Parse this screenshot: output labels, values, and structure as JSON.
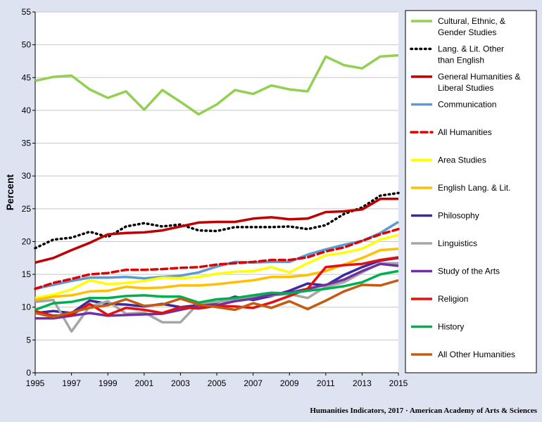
{
  "chart_data": {
    "type": "line",
    "ylabel": "Percent",
    "xlabel": "",
    "ylim": [
      0,
      55
    ],
    "yticks": [
      0,
      5,
      10,
      15,
      20,
      25,
      30,
      35,
      40,
      45,
      50,
      55
    ],
    "xlim": [
      1995,
      2015
    ],
    "xticks": [
      1995,
      1997,
      1999,
      2001,
      2003,
      2005,
      2007,
      2009,
      2011,
      2013,
      2015
    ],
    "x": [
      1995,
      1996,
      1997,
      1998,
      1999,
      2000,
      2001,
      2002,
      2003,
      2004,
      2005,
      2006,
      2007,
      2008,
      2009,
      2010,
      2011,
      2012,
      2013,
      2014,
      2015
    ],
    "legend_position": "right",
    "grid": "horizontal",
    "series": [
      {
        "name": "Cultural, Ethnic, & Gender Studies",
        "legend_lines": [
          "Cultural, Ethnic, &",
          "Gender Studies"
        ],
        "color": "#92d050",
        "dash": "solid",
        "values": [
          44.5,
          45.1,
          45.3,
          43.2,
          41.9,
          42.9,
          40.1,
          43.1,
          41.3,
          39.4,
          40.9,
          43.1,
          42.5,
          43.8,
          43.2,
          42.9,
          48.2,
          46.9,
          46.4,
          48.2,
          48.4
        ]
      },
      {
        "name": "Lang. & Lit. Other than English",
        "legend_lines": [
          "Lang. & Lit. Other",
          "than English"
        ],
        "color": "#000000",
        "dash": "dotted",
        "values": [
          19.0,
          20.3,
          20.6,
          21.5,
          20.7,
          22.3,
          22.8,
          22.3,
          22.6,
          21.7,
          21.6,
          22.2,
          22.2,
          22.2,
          22.3,
          21.9,
          22.5,
          24.2,
          25.2,
          27.0,
          27.4
        ]
      },
      {
        "name": "General Humanities & Liberal Studies",
        "legend_lines": [
          "General Humanities &",
          "Liberal Studies"
        ],
        "color": "#c00000",
        "dash": "solid",
        "values": [
          16.8,
          17.5,
          18.7,
          19.8,
          21.1,
          21.3,
          21.4,
          21.7,
          22.3,
          22.9,
          23.0,
          23.0,
          23.5,
          23.7,
          23.4,
          23.5,
          24.5,
          24.6,
          24.9,
          26.5,
          26.5
        ]
      },
      {
        "name": "Communication",
        "legend_lines": [
          "Communication"
        ],
        "color": "#5b9bd5",
        "dash": "solid",
        "values": [
          12.8,
          13.4,
          14.0,
          14.5,
          14.5,
          14.6,
          14.4,
          14.6,
          14.8,
          15.3,
          16.2,
          16.9,
          16.8,
          16.9,
          16.9,
          18.0,
          18.8,
          19.5,
          20.1,
          21.3,
          23.0
        ]
      },
      {
        "name": "All Humanities",
        "legend_lines": [
          "All Humanities"
        ],
        "color": "#e00000",
        "dash": "dashed",
        "values": [
          12.8,
          13.7,
          14.3,
          15.0,
          15.2,
          15.7,
          15.7,
          15.8,
          16.0,
          16.1,
          16.5,
          16.7,
          16.9,
          17.2,
          17.2,
          17.6,
          18.5,
          19.1,
          20.1,
          21.1,
          21.9
        ]
      },
      {
        "name": "Area Studies",
        "legend_lines": [
          "Area Studies"
        ],
        "color": "#ffff00",
        "dash": "solid",
        "values": [
          11.4,
          11.9,
          12.7,
          14.1,
          13.5,
          13.7,
          14.0,
          14.5,
          14.4,
          14.6,
          15.1,
          15.4,
          15.5,
          16.1,
          15.3,
          16.7,
          17.9,
          18.3,
          18.9,
          20.3,
          21.0
        ]
      },
      {
        "name": "English Lang. & Lit.",
        "legend_lines": [
          "English Lang. & Lit."
        ],
        "color": "#ffc000",
        "dash": "solid",
        "values": [
          11.1,
          11.6,
          11.8,
          12.4,
          12.5,
          13.1,
          12.9,
          13.0,
          13.3,
          13.3,
          13.5,
          13.8,
          14.1,
          14.6,
          14.6,
          14.9,
          15.5,
          16.5,
          17.5,
          18.7,
          18.9
        ]
      },
      {
        "name": "Philosophy",
        "legend_lines": [
          "Philosophy"
        ],
        "color": "#3a2aa0",
        "dash": "solid",
        "values": [
          9.1,
          9.4,
          9.1,
          11.0,
          10.5,
          10.4,
          10.1,
          10.5,
          10.0,
          10.3,
          10.7,
          11.6,
          11.1,
          11.7,
          12.5,
          13.6,
          13.3,
          14.9,
          16.1,
          17.1,
          17.5
        ]
      },
      {
        "name": "Linguistics",
        "legend_lines": [
          "Linguistics"
        ],
        "color": "#a6a6a6",
        "dash": "solid",
        "values": [
          10.8,
          11.1,
          6.3,
          10.1,
          10.9,
          9.0,
          9.2,
          7.7,
          7.7,
          10.6,
          10.8,
          11.1,
          11.6,
          11.8,
          12.0,
          11.4,
          13.1,
          13.8,
          15.3,
          16.7,
          16.7
        ]
      },
      {
        "name": "Study of the Arts",
        "legend_lines": [
          "Study of the Arts"
        ],
        "color": "#7030a0",
        "dash": "solid",
        "values": [
          8.3,
          8.3,
          8.7,
          9.1,
          8.7,
          8.8,
          8.9,
          9.0,
          9.6,
          10.2,
          10.3,
          10.9,
          11.3,
          11.9,
          12.2,
          12.8,
          13.4,
          14.2,
          15.5,
          16.6,
          16.3
        ]
      },
      {
        "name": "Religion",
        "legend_lines": [
          "Religion"
        ],
        "color": "#e41010",
        "dash": "solid",
        "values": [
          9.4,
          8.7,
          8.8,
          10.5,
          8.8,
          9.9,
          9.6,
          9.1,
          10.0,
          9.8,
          10.2,
          10.1,
          9.9,
          10.7,
          11.7,
          12.8,
          16.1,
          16.4,
          16.6,
          17.2,
          17.6
        ]
      },
      {
        "name": "History",
        "legend_lines": [
          "History"
        ],
        "color": "#00b050",
        "dash": "solid",
        "values": [
          9.6,
          10.6,
          10.8,
          11.4,
          11.4,
          11.7,
          11.8,
          11.6,
          11.6,
          10.7,
          11.2,
          11.4,
          11.8,
          12.2,
          12.1,
          12.5,
          12.8,
          13.2,
          13.8,
          15.0,
          15.5
        ]
      },
      {
        "name": "All Other Humanities",
        "legend_lines": [
          "All Other Humanities"
        ],
        "color": "#c55a11",
        "dash": "solid",
        "values": [
          9.1,
          8.5,
          9.2,
          9.9,
          10.3,
          11.2,
          10.2,
          10.4,
          11.3,
          10.4,
          10.0,
          9.6,
          10.6,
          9.9,
          10.9,
          9.7,
          11.0,
          12.4,
          13.4,
          13.3,
          14.1
        ]
      }
    ]
  },
  "footer": {
    "source": "Humanities Indicators, 2017 · American Academy of Arts & Sciences"
  }
}
